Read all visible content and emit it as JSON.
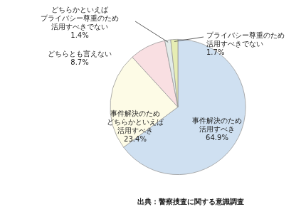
{
  "chart_data": {
    "type": "pie",
    "categories": [
      "事件解決のため\n活用すべき",
      "事件解決のため\nどちらかといえば\n活用すべき",
      "どちらとも言えない",
      "どちらかといえば\nプライバシー尊重のため\n活用すべきでない",
      "プライバシー尊重のため\n活用すべきでない"
    ],
    "values": [
      64.9,
      23.4,
      8.7,
      1.4,
      1.7
    ],
    "value_labels": [
      "64.9%",
      "23.4%",
      "8.7%",
      "1.4%",
      "1.7%"
    ],
    "colors": [
      "#cfe0f1",
      "#fdfbe6",
      "#f9dfe2",
      "#e2ebe9",
      "#e6edb3"
    ],
    "data_labels": true,
    "annotations": [
      "出典：警察捜査に関する意識調査"
    ]
  }
}
